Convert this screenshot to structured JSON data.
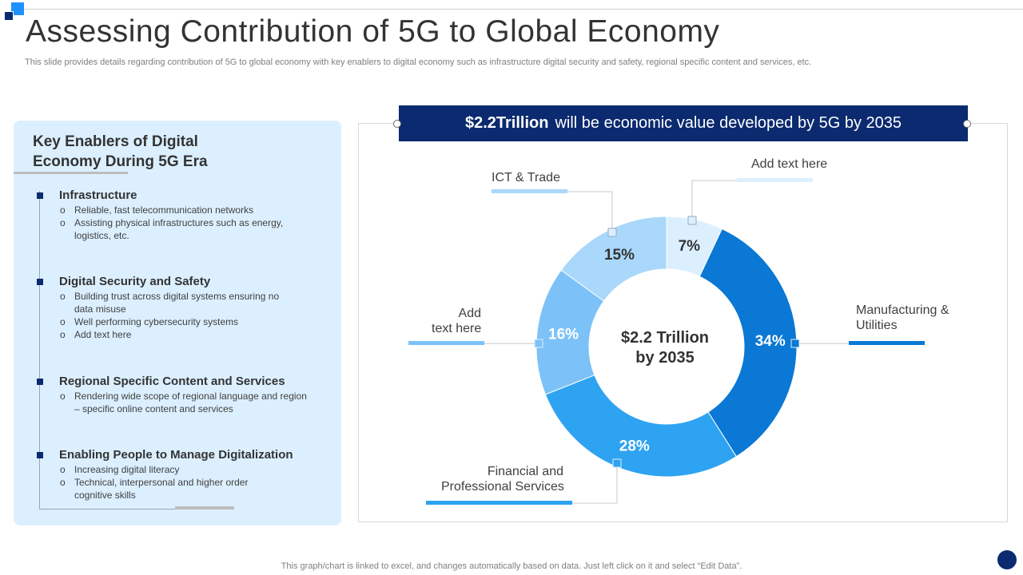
{
  "slide": {
    "title": "Assessing Contribution of 5G to Global Economy",
    "subtitle": "This slide provides details regarding contribution of 5G to global economy with key enablers to digital economy such as infrastructure digital security and safety, regional specific content and services, etc.",
    "footer_note": "This graph/chart is linked to excel, and changes automatically based on data. Just left click on it and select “Edit Data”."
  },
  "left_panel": {
    "title_line1": "Key Enablers of Digital",
    "title_line2": "Economy During 5G Era",
    "enablers": [
      {
        "title": "Infrastructure",
        "bullets": [
          "Reliable, fast telecommunication networks",
          "Assisting physical infrastructures such as energy, logistics, etc."
        ]
      },
      {
        "title": "Digital Security and Safety",
        "bullets": [
          "Building trust across digital systems ensuring no data misuse",
          "Well performing cybersecurity systems",
          "Add text here"
        ]
      },
      {
        "title": "Regional Specific Content and Services",
        "bullets": [
          "Rendering wide scope of regional language and region – specific online content and services"
        ]
      },
      {
        "title": "Enabling People to Manage Digitalization",
        "bullets": [
          "Increasing digital literacy",
          "Technical, interpersonal and higher order cognitive skills"
        ]
      }
    ]
  },
  "banner": {
    "bold": "$2.2Trillion",
    "rest": "will be economic value developed by 5G by 2035"
  },
  "chart_data": {
    "type": "pie",
    "style": "donut",
    "center_label_line1": "$2.2 Trillion",
    "center_label_line2": "by 2035",
    "categories": [
      "Add text here",
      "Manufacturing & Utilities",
      "Financial and Professional Services",
      "Add text here",
      "ICT & Trade"
    ],
    "values": [
      7,
      34,
      28,
      16,
      15
    ],
    "value_labels": [
      "7%",
      "34%",
      "28%",
      "16%",
      "15%"
    ],
    "colors": [
      "#dcefff",
      "#0a78d4",
      "#2ea3f2",
      "#7cc2f8",
      "#a9d8fb"
    ],
    "label_colors": [
      "#333333",
      "#ffffff",
      "#ffffff",
      "#ffffff",
      "#333333"
    ],
    "start_angle_deg": 0,
    "direction": "clockwise"
  },
  "callouts": {
    "ict_trade": "ICT & Trade",
    "add_text_top": "Add text here",
    "add_text_left_line1": "Add",
    "add_text_left_line2": "text here",
    "manufacturing_line1": "Manufacturing &",
    "manufacturing_line2": "Utilities",
    "financial_line1": "Financial and",
    "financial_line2": "Professional Services"
  }
}
